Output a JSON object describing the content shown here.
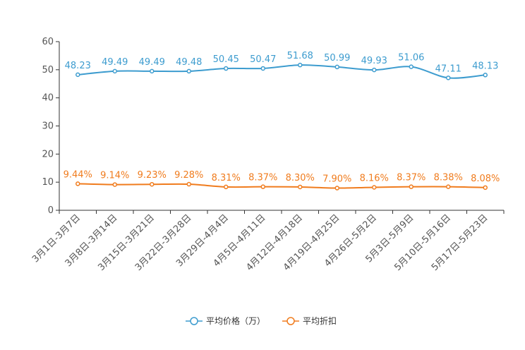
{
  "chart_data": {
    "type": "line",
    "title": "",
    "xlabel": "",
    "ylabel": "",
    "ylim": [
      0,
      60
    ],
    "yticks": [
      0,
      10,
      20,
      30,
      40,
      50,
      60
    ],
    "categories": [
      "3月1日-3月7日",
      "3月8日-3月14日",
      "3月15日-3月21日",
      "3月22日-3月28日",
      "3月29日-4月4日",
      "4月5日-4月11日",
      "4月12日-4月18日",
      "4月19日-4月25日",
      "4月26日-5月2日",
      "5月3日-5月9日",
      "5月10日-5月16日",
      "5月17日-5月23日"
    ],
    "series": [
      {
        "name": "平均价格（万）",
        "color": "#3d9ccf",
        "values": [
          48.23,
          49.49,
          49.49,
          49.48,
          50.45,
          50.47,
          51.68,
          50.99,
          49.93,
          51.06,
          47.11,
          48.13
        ],
        "labels": [
          "48.23",
          "49.49",
          "49.49",
          "49.48",
          "50.45",
          "50.47",
          "51.68",
          "50.99",
          "49.93",
          "51.06",
          "47.11",
          "48.13"
        ]
      },
      {
        "name": "平均折扣",
        "color": "#f07c1e",
        "values": [
          9.44,
          9.14,
          9.23,
          9.28,
          8.31,
          8.37,
          8.3,
          7.9,
          8.16,
          8.37,
          8.38,
          8.08
        ],
        "labels": [
          "9.44%",
          "9.14%",
          "9.23%",
          "9.28%",
          "8.31%",
          "8.37%",
          "8.30%",
          "7.90%",
          "8.16%",
          "8.37%",
          "8.38%",
          "8.08%"
        ]
      }
    ],
    "legend_position": "bottom-center",
    "grid": false
  }
}
